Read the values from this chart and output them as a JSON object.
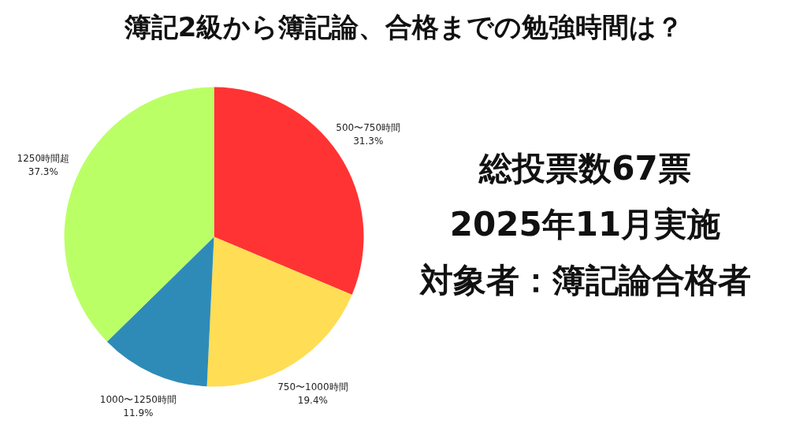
{
  "chart_data": {
    "type": "pie",
    "title": "簿記2級から簿記論、合格までの勉強時間は？",
    "categories": [
      "500〜750時間",
      "750〜1000時間",
      "1000〜1250時間",
      "1250時間超"
    ],
    "values": [
      31.3,
      19.4,
      11.9,
      37.3
    ],
    "value_labels": [
      "31.3%",
      "19.4%",
      "11.9%",
      "37.3%"
    ],
    "colors": [
      "#ff3333",
      "#ffdd55",
      "#2e8bb8",
      "#bbff66"
    ],
    "annotations": [
      "総投票数67票",
      "2025年11月実施",
      "対象者：簿記論合格者"
    ]
  }
}
